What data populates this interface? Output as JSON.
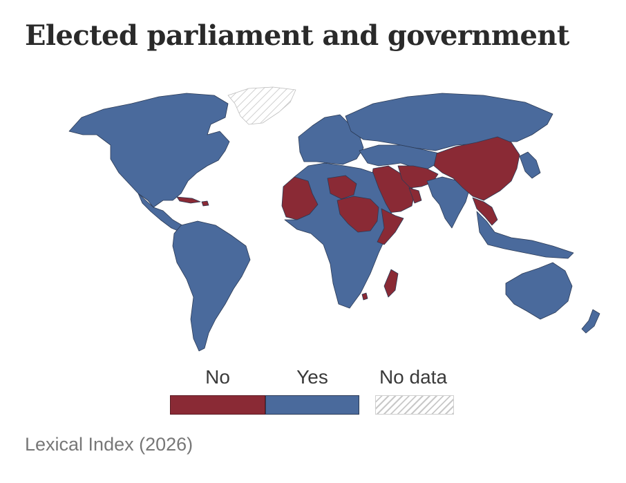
{
  "title": "Elected parliament and government",
  "source": "Lexical Index (2026)",
  "colors": {
    "no": "#8a2a35",
    "yes": "#4a6a9c",
    "no_data_hatch": "#c8c8c8",
    "border": "#2b3a55"
  },
  "legend": [
    {
      "key": "no",
      "label": "No"
    },
    {
      "key": "yes",
      "label": "Yes"
    },
    {
      "key": "no_data",
      "label": "No data"
    }
  ],
  "map": {
    "variable": "Elected parliament and government",
    "categories": [
      "No",
      "Yes",
      "No data"
    ],
    "regions": {
      "north_america": "Yes",
      "greenland": "No data",
      "central_america": "Yes",
      "cuba": "No",
      "haiti": "No",
      "south_america": "Yes",
      "europe": "Yes",
      "russia": "Yes",
      "western_sahara": "No",
      "libya": "No",
      "west_sahel": "No",
      "chad": "No",
      "sudan": "No",
      "south_sudan": "No",
      "eritrea": "No",
      "somalia": "No",
      "rest_of_africa": "Yes",
      "madagascar": "No",
      "eswatini": "No",
      "middle_east": "Yes",
      "saudi_arabia": "No",
      "iran": "No",
      "afghanistan": "No",
      "persian_gulf_states": "No",
      "south_asia": "Yes",
      "china": "No",
      "myanmar": "No",
      "vietnam_laos": "No",
      "southeast_asia": "Yes",
      "japan_korea": "Yes",
      "australia": "Yes",
      "new_zealand": "Yes"
    }
  }
}
